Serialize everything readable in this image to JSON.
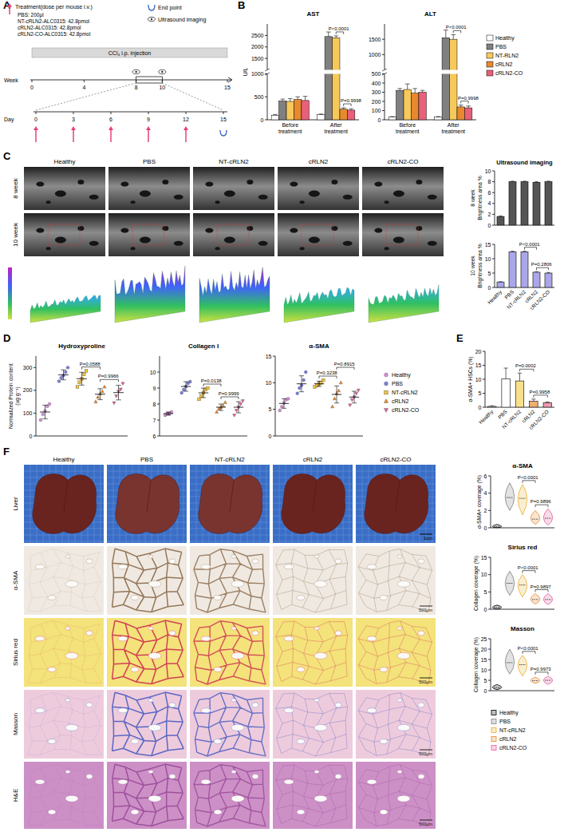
{
  "chart_data": [
    {
      "type": "bar",
      "title": "AST",
      "y_label": "U/L",
      "categories": [
        "Before treatment",
        "After treatment"
      ],
      "series": [
        {
          "color": "#ffffff",
          "values": [
            100,
            110
          ],
          "errors": [
            15,
            15
          ]
        },
        {
          "color": "#808080",
          "values": [
            410,
            2450
          ],
          "errors": [
            40,
            200
          ]
        },
        {
          "color": "#f7c95a",
          "values": [
            400,
            2400
          ],
          "errors": [
            60,
            80
          ]
        },
        {
          "color": "#e8892d",
          "values": [
            440,
            230
          ],
          "errors": [
            60,
            30
          ]
        },
        {
          "color": "#e8607a",
          "values": [
            420,
            210
          ],
          "errors": [
            90,
            30
          ]
        }
      ],
      "ylim": [
        0,
        3000
      ],
      "yticks": [
        0,
        500,
        1000,
        1500,
        2000,
        2500
      ],
      "ybreak": 1000,
      "annotations": [
        {
          "text": "P<0.0001",
          "category": 1,
          "groups": [
            2,
            3
          ]
        },
        {
          "text": "P=0.9998",
          "category": 1,
          "groups": [
            3,
            4
          ]
        }
      ]
    },
    {
      "type": "bar",
      "title": "ALT",
      "categories": [
        "Before treatment",
        "After treatment"
      ],
      "series": [
        {
          "name": "Healthy",
          "color": "#ffffff",
          "values": [
            30,
            30
          ],
          "errors": [
            5,
            5
          ]
        },
        {
          "name": "PBS",
          "color": "#808080",
          "values": [
            320,
            1550
          ],
          "errors": [
            20,
            250
          ]
        },
        {
          "name": "NT-RLN2",
          "color": "#f7c95a",
          "values": [
            330,
            1500
          ],
          "errors": [
            60,
            150
          ]
        },
        {
          "name": "cRLN2",
          "color": "#e8892d",
          "values": [
            290,
            140
          ],
          "errors": [
            50,
            20
          ]
        },
        {
          "name": "cRLN2-CO",
          "color": "#e8607a",
          "values": [
            300,
            130
          ],
          "errors": [
            20,
            20
          ]
        }
      ],
      "ylim": [
        0,
        2000
      ],
      "yticks": [
        0,
        100,
        200,
        300,
        400,
        500,
        1000,
        1500
      ],
      "ybreak": 500,
      "legend": "right",
      "annotations": [
        {
          "text": "P<0.0001",
          "category": 1,
          "groups": [
            2,
            3
          ]
        },
        {
          "text": "P=0.9998",
          "category": 1,
          "groups": [
            3,
            4
          ]
        }
      ]
    },
    {
      "type": "bar",
      "title": "Ultrasound imaging",
      "y_label": [
        "8 week",
        "Brightness area %"
      ],
      "categories": [
        null,
        null,
        null,
        null,
        null
      ],
      "values": [
        1.6,
        8.0,
        8.0,
        7.9,
        8.0
      ],
      "errors": [
        0.1,
        0.1,
        0.1,
        0.1,
        0.1
      ],
      "color": "#555555",
      "ylim": [
        0,
        10
      ],
      "yticks": [
        0,
        2,
        4,
        6,
        8,
        10
      ]
    },
    {
      "type": "bar",
      "y_label": [
        "10 week",
        "Brightness area %"
      ],
      "categories": [
        "Healthy",
        "PBS",
        "NT-cRLN2",
        "cRLN2",
        "cRLN2-CO"
      ],
      "values": [
        1.9,
        12.4,
        12.4,
        5.3,
        5.0
      ],
      "errors": [
        0.1,
        0.2,
        0.2,
        0.2,
        0.2
      ],
      "color": "#a9a7e8",
      "ylim": [
        0,
        15
      ],
      "yticks": [
        0,
        5,
        10,
        15
      ],
      "annotations": [
        {
          "text": "P<0.0001",
          "groups": [
            2,
            3
          ]
        },
        {
          "text": "P=0.2806",
          "groups": [
            3,
            4
          ]
        }
      ]
    },
    {
      "type": "dot",
      "title": "Hydroxyproline",
      "y_label": [
        "Normalized Protein content",
        "(ug g⁻¹)"
      ],
      "categories": [
        null,
        null,
        null,
        null,
        null
      ],
      "values": [
        105,
        268,
        251,
        183,
        190
      ],
      "errors": [
        30,
        22,
        28,
        24,
        32
      ],
      "points": [
        [
          70,
          95,
          110,
          130,
          140
        ],
        [
          240,
          255,
          265,
          280,
          300
        ],
        [
          215,
          235,
          250,
          270,
          285
        ],
        [
          150,
          170,
          185,
          195,
          215
        ],
        [
          145,
          175,
          195,
          205,
          230
        ]
      ],
      "colors": [
        "#d88fd8",
        "#7b7fe0",
        "#f2c040",
        "#e8892d",
        "#e0609a"
      ],
      "ylim": [
        0,
        350
      ],
      "yticks": [
        0,
        100,
        200,
        300
      ],
      "annotations": [
        {
          "text": "P=0.0588",
          "groups": [
            2,
            3
          ]
        },
        {
          "text": "P=0.9966",
          "groups": [
            3,
            4
          ]
        }
      ]
    },
    {
      "type": "dot",
      "title": "Collagen I",
      "categories": [
        null,
        null,
        null,
        null,
        null
      ],
      "values": [
        7.4,
        9.1,
        8.7,
        7.8,
        7.8
      ],
      "errors": [
        0.1,
        0.3,
        0.3,
        0.2,
        0.35
      ],
      "points": [
        [
          7.3,
          7.4,
          7.4,
          7.5
        ],
        [
          8.7,
          8.9,
          9.1,
          9.3,
          9.4
        ],
        [
          8.3,
          8.5,
          8.7,
          8.9,
          9.0
        ],
        [
          7.5,
          7.7,
          7.8,
          7.9,
          8.1
        ],
        [
          7.3,
          7.6,
          7.8,
          8.0,
          8.2
        ]
      ],
      "colors": [
        "#d88fd8",
        "#7b7fe0",
        "#f2c040",
        "#e8892d",
        "#e0609a"
      ],
      "ylim": [
        6,
        11
      ],
      "yticks": [
        6,
        7,
        8,
        9,
        10
      ],
      "annotations": [
        {
          "text": "P=0.0138",
          "groups": [
            2,
            3
          ]
        },
        {
          "text": "P=0.9999",
          "groups": [
            3,
            4
          ]
        }
      ]
    },
    {
      "type": "dot",
      "title": "α-SMA",
      "categories": [
        null,
        null,
        null,
        null,
        null
      ],
      "values": [
        6.1,
        9.8,
        9.8,
        7.8,
        7.3
      ],
      "errors": [
        0.9,
        1.5,
        0.5,
        1.6,
        1.1
      ],
      "points": [
        [
          4.8,
          5.5,
          6.2,
          6.8,
          7.0
        ],
        [
          8.0,
          9.0,
          9.5,
          10.5,
          12.0
        ],
        [
          9.2,
          9.5,
          9.8,
          10.0,
          10.5
        ],
        [
          5.5,
          7.0,
          8.0,
          8.5,
          10.0
        ],
        [
          5.8,
          6.8,
          7.3,
          8.0,
          8.6
        ]
      ],
      "colors": [
        "#d88fd8",
        "#7b7fe0",
        "#f2c040",
        "#e8892d",
        "#e0609a"
      ],
      "ylim": [
        0,
        15
      ],
      "yticks": [
        0,
        5,
        10,
        15
      ],
      "annotations": [
        {
          "text": "P=0.3238",
          "groups": [
            2,
            3
          ]
        },
        {
          "text": "P=0.8915",
          "groups": [
            3,
            4
          ]
        }
      ]
    },
    {
      "type": "bar",
      "y_label": "α-SMA+ HSCs (%)",
      "categories": [
        "Healthy",
        "PBS",
        "NT-cRLN2",
        "cRLN2",
        "cRLN2-CO"
      ],
      "values": [
        0.3,
        10.2,
        9.4,
        2.1,
        1.6
      ],
      "errors": [
        0.2,
        3.8,
        2.8,
        0.8,
        0.3
      ],
      "colors": [
        "#ffffff",
        "#ffffff",
        "#f7e08a",
        "#f0b070",
        "#f09ab0"
      ],
      "ylim": [
        0,
        20
      ],
      "yticks": [
        0,
        5,
        10,
        15,
        20
      ],
      "annotations": [
        {
          "text": "P=0.0002",
          "groups": [
            2,
            3
          ]
        },
        {
          "text": "P=0.9958",
          "groups": [
            3,
            4
          ]
        }
      ]
    },
    {
      "type": "violin",
      "title": "α-SMA",
      "y_label": "α-SMA+ coverage (%)",
      "categories": [
        null,
        null,
        null,
        null,
        null
      ],
      "values": [
        0.1,
        3.5,
        3.4,
        1.0,
        1.1
      ],
      "ranges": [
        [
          0,
          0.4
        ],
        [
          2,
          5.2
        ],
        [
          1.5,
          5
        ],
        [
          0.4,
          2
        ],
        [
          0.3,
          2.2
        ]
      ],
      "colors": [
        "#000000",
        "#808080",
        "#e8b030",
        "#e8892d",
        "#e0609a"
      ],
      "ylim": [
        0,
        6
      ],
      "yticks": [
        0,
        2,
        4,
        6
      ],
      "annotations": [
        {
          "text": "P<0.0001",
          "groups": [
            2,
            3
          ]
        },
        {
          "text": "P=0.9896",
          "groups": [
            3,
            4
          ]
        }
      ]
    },
    {
      "type": "violin",
      "title": "Sirius red",
      "y_label": "Collagen coverage (%)",
      "categories": [
        null,
        null,
        null,
        null,
        null
      ],
      "values": [
        0.5,
        7.5,
        7.0,
        2.8,
        2.8
      ],
      "ranges": [
        [
          0,
          1.2
        ],
        [
          4,
          11
        ],
        [
          3.5,
          10
        ],
        [
          1.5,
          4.5
        ],
        [
          1.3,
          4.5
        ]
      ],
      "colors": [
        "#000000",
        "#808080",
        "#e8b030",
        "#e8892d",
        "#e0609a"
      ],
      "ylim": [
        0,
        15
      ],
      "yticks": [
        0,
        5,
        10,
        15
      ],
      "annotations": [
        {
          "text": "P<0.0001",
          "groups": [
            2,
            3
          ]
        },
        {
          "text": "P=0.9897",
          "groups": [
            3,
            4
          ]
        }
      ]
    },
    {
      "type": "violin",
      "title": "Masson",
      "y_label": "Collagen coverage (%)",
      "categories": [
        null,
        null,
        null,
        null,
        null
      ],
      "values": [
        1.5,
        13.5,
        12.5,
        4.8,
        5.0
      ],
      "ranges": [
        [
          0.5,
          3
        ],
        [
          8,
          20
        ],
        [
          7,
          17
        ],
        [
          3.5,
          6.5
        ],
        [
          3,
          7
        ]
      ],
      "colors": [
        "#000000",
        "#808080",
        "#e8b030",
        "#e8892d",
        "#e0609a"
      ],
      "ylim": [
        0,
        25
      ],
      "yticks": [
        0,
        5,
        10,
        15,
        20,
        25
      ],
      "annotations": [
        {
          "text": "P<0.0001",
          "groups": [
            2,
            3
          ]
        },
        {
          "text": "P=0.9973",
          "groups": [
            3,
            4
          ]
        }
      ]
    }
  ],
  "figure": {
    "letters": [
      "A",
      "B",
      "C",
      "D",
      "E",
      "F"
    ],
    "panel_A": {
      "treatment": "Treatment(dose per mouse i.v.)",
      "doses": [
        "PBS: 200μl",
        "NT-cRLN2-ALC0315: 42.8pmol",
        "cRLN2-ALC0315: 42.8pmol",
        "cRLN2-CO-ALC0315: 42.8pmol"
      ],
      "end_point": "End point",
      "ultrasound": "Ultrasound imaging",
      "ccl4": "CCl₄ i.p. injection",
      "week_label": "Week",
      "weeks": [
        0,
        4,
        8,
        10,
        15
      ],
      "ultrasound_weeks": [
        8,
        10
      ],
      "day_label": "Day",
      "days": [
        0,
        3,
        6,
        9,
        12,
        15
      ],
      "treatment_days": [
        0,
        3,
        6,
        9,
        12
      ],
      "end_day": 15
    },
    "panel_C": {
      "columns": [
        "Healthy",
        "PBS",
        "NT-cRLN2",
        "cRLN2",
        "cRLN2-CO"
      ],
      "rows": [
        "8 week",
        "10 week"
      ]
    },
    "legend_D": [
      {
        "name": "Healthy",
        "color": "#d88fd8",
        "marker": "circle"
      },
      {
        "name": "PBS",
        "color": "#7b7fe0",
        "marker": "circle"
      },
      {
        "name": "NT-cRLN2",
        "color": "#f2c040",
        "marker": "square"
      },
      {
        "name": "cRLN2",
        "color": "#e8892d",
        "marker": "triangle"
      },
      {
        "name": "cRLN2-CO",
        "color": "#e0609a",
        "marker": "triangle-down"
      }
    ],
    "panel_F": {
      "columns": [
        "Healthy",
        "PBS",
        "NT-cRLN2",
        "cRLN2",
        "cRLN2-CO"
      ],
      "rows": [
        "Liver",
        "α-SMA",
        "Sirius red",
        "Masson",
        "H&E"
      ],
      "scale_liver": "1cm",
      "scale_micro": "500μm"
    },
    "legend_F": [
      {
        "name": "Healthy",
        "color": "#000000",
        "marker": "square"
      },
      {
        "name": "PBS",
        "color": "#808080",
        "marker": "square"
      },
      {
        "name": "NT-cRLN2",
        "color": "#e8b030",
        "marker": "square"
      },
      {
        "name": "cRLN2",
        "color": "#e8892d",
        "marker": "square"
      },
      {
        "name": "cRLN2-CO",
        "color": "#e0609a",
        "marker": "square"
      }
    ]
  }
}
